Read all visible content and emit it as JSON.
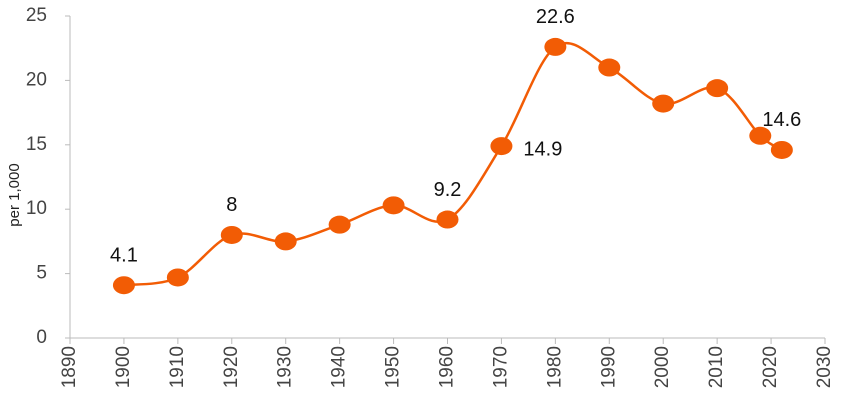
{
  "chart_data": {
    "type": "line",
    "y_label": "per 1,000",
    "x": [
      1900,
      1910,
      1920,
      1930,
      1940,
      1950,
      1960,
      1970,
      1980,
      1990,
      2000,
      2010,
      2018,
      2022
    ],
    "series": [
      {
        "color": "#f25c05",
        "values": [
          4.1,
          4.7,
          8,
          7.5,
          8.8,
          10.3,
          9.2,
          14.9,
          22.6,
          21.0,
          18.2,
          19.4,
          15.7,
          14.6
        ],
        "value_labels": [
          "4.1",
          null,
          "8",
          null,
          null,
          null,
          "9.2",
          "14.9",
          "22.6",
          null,
          null,
          null,
          null,
          "14.6"
        ]
      }
    ],
    "xlim": [
      1890,
      2030
    ],
    "xticks": [
      1890,
      1900,
      1910,
      1920,
      1930,
      1940,
      1950,
      1960,
      1970,
      1980,
      1990,
      2000,
      2010,
      2020,
      2030
    ],
    "ylim": [
      0,
      25
    ],
    "yticks": [
      0,
      5,
      10,
      15,
      20,
      25
    ]
  }
}
